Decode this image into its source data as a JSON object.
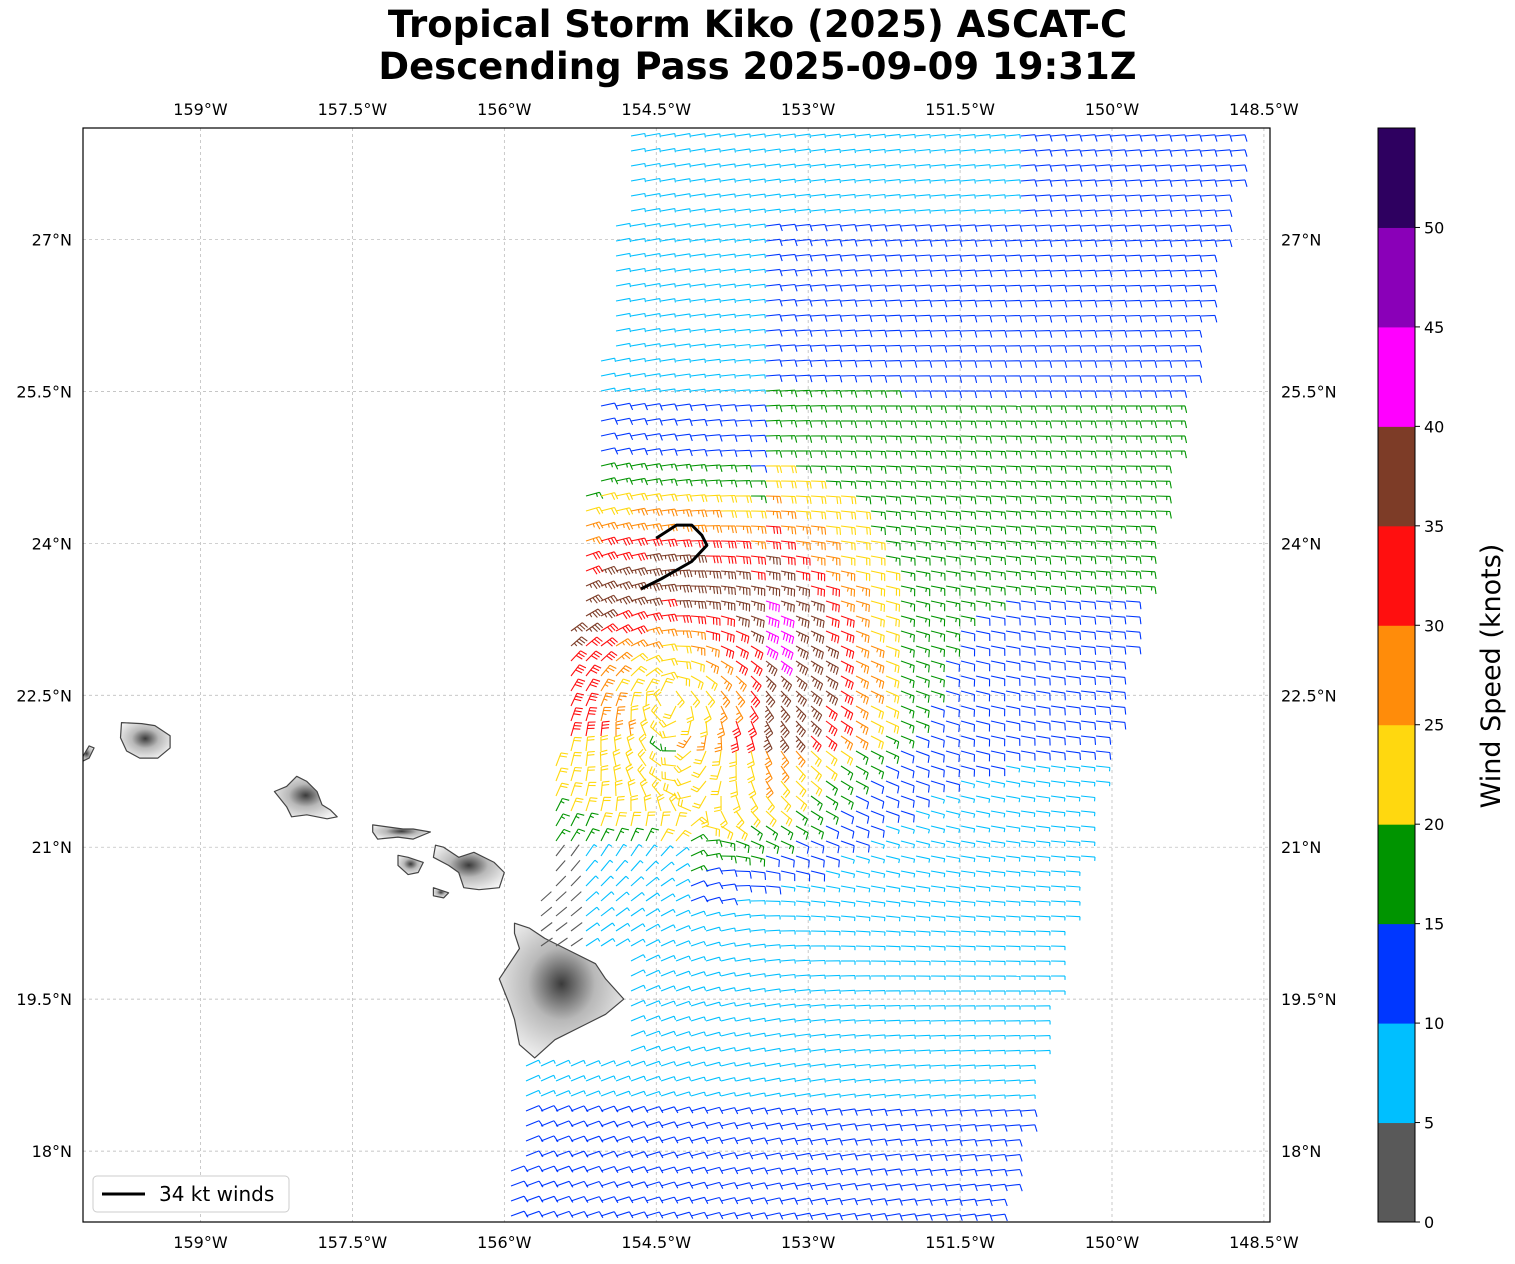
{
  "title_line1": "Tropical Storm Kiko (2025) ASCAT-C",
  "title_line2": "Descending Pass 2025-09-09 19:31Z",
  "lon_ticks": [
    "159°W",
    "157.5°W",
    "156°W",
    "154.5°W",
    "153°W",
    "151.5°W",
    "150°W",
    "148.5°W"
  ],
  "lat_ticks": [
    "27°N",
    "25.5°N",
    "24°N",
    "22.5°N",
    "21°N",
    "19.5°N",
    "18°N"
  ],
  "legend_label": "34 kt winds",
  "colorbar": {
    "label": "Wind Speed (knots)",
    "tick_labels": [
      "0",
      "5",
      "10",
      "15",
      "20",
      "25",
      "30",
      "35",
      "40",
      "45",
      "50"
    ],
    "bins": [
      {
        "min": 0,
        "max": 5,
        "color": "#595959"
      },
      {
        "min": 5,
        "max": 10,
        "color": "#00bfff"
      },
      {
        "min": 10,
        "max": 15,
        "color": "#0037ff"
      },
      {
        "min": 15,
        "max": 20,
        "color": "#009400"
      },
      {
        "min": 20,
        "max": 25,
        "color": "#ffd80f"
      },
      {
        "min": 25,
        "max": 30,
        "color": "#ff8c0a"
      },
      {
        "min": 30,
        "max": 35,
        "color": "#ff0f0f"
      },
      {
        "min": 35,
        "max": 40,
        "color": "#7d3c27"
      },
      {
        "min": 40,
        "max": 45,
        "color": "#ff00ff"
      },
      {
        "min": 45,
        "max": 50,
        "color": "#8a00b8"
      },
      {
        "min": 50,
        "max": 55,
        "color": "#2e0060"
      }
    ]
  },
  "map": {
    "lon_range": [
      -160.16,
      -148.44
    ],
    "lat_range": [
      17.3,
      28.1
    ],
    "storm_center": {
      "lon": -154.4,
      "lat": 22.55
    },
    "swath": {
      "lat_min": 17.3,
      "lat_max": 28.1,
      "west_lon_at_top": -154.8,
      "west_lon_at_bottom": -156.0,
      "east_lon_at_top": -148.7,
      "east_lon_at_bottom": -151.1
    },
    "wind34_contour": [
      [
        -154.5,
        24.05
      ],
      [
        -154.3,
        24.18
      ],
      [
        -154.15,
        24.18
      ],
      [
        -154.05,
        24.08
      ],
      [
        -154.0,
        23.98
      ],
      [
        -154.15,
        23.82
      ],
      [
        -154.45,
        23.65
      ],
      [
        -154.65,
        23.55
      ]
    ],
    "islands": [
      {
        "name": "Kauai",
        "outline": [
          [
            -159.78,
            22.23
          ],
          [
            -159.58,
            22.22
          ],
          [
            -159.45,
            22.2
          ],
          [
            -159.3,
            22.1
          ],
          [
            -159.3,
            21.98
          ],
          [
            -159.42,
            21.88
          ],
          [
            -159.6,
            21.88
          ],
          [
            -159.73,
            21.95
          ],
          [
            -159.79,
            22.08
          ]
        ]
      },
      {
        "name": "Niihau",
        "outline": [
          [
            -160.1,
            22.0
          ],
          [
            -160.05,
            21.98
          ],
          [
            -160.1,
            21.88
          ],
          [
            -160.2,
            21.83
          ]
        ]
      },
      {
        "name": "Oahu",
        "outline": [
          [
            -158.05,
            21.7
          ],
          [
            -157.95,
            21.65
          ],
          [
            -157.85,
            21.55
          ],
          [
            -157.8,
            21.42
          ],
          [
            -157.72,
            21.37
          ],
          [
            -157.65,
            21.3
          ],
          [
            -157.75,
            21.28
          ],
          [
            -157.95,
            21.32
          ],
          [
            -158.1,
            21.3
          ],
          [
            -158.15,
            21.4
          ],
          [
            -158.27,
            21.55
          ],
          [
            -158.15,
            21.6
          ]
        ]
      },
      {
        "name": "Molokai",
        "outline": [
          [
            -157.3,
            21.22
          ],
          [
            -157.0,
            21.18
          ],
          [
            -156.9,
            21.18
          ],
          [
            -156.73,
            21.15
          ],
          [
            -156.9,
            21.08
          ],
          [
            -157.05,
            21.1
          ],
          [
            -157.25,
            21.08
          ],
          [
            -157.3,
            21.15
          ]
        ]
      },
      {
        "name": "Lanai",
        "outline": [
          [
            -157.05,
            20.92
          ],
          [
            -156.95,
            20.9
          ],
          [
            -156.8,
            20.85
          ],
          [
            -156.85,
            20.75
          ],
          [
            -156.95,
            20.73
          ],
          [
            -157.05,
            20.82
          ]
        ]
      },
      {
        "name": "Maui",
        "outline": [
          [
            -156.6,
            21.0
          ],
          [
            -156.45,
            20.9
          ],
          [
            -156.3,
            20.95
          ],
          [
            -156.1,
            20.85
          ],
          [
            -156.0,
            20.75
          ],
          [
            -156.05,
            20.6
          ],
          [
            -156.25,
            20.58
          ],
          [
            -156.4,
            20.6
          ],
          [
            -156.45,
            20.75
          ],
          [
            -156.55,
            20.82
          ],
          [
            -156.7,
            20.9
          ],
          [
            -156.68,
            21.02
          ]
        ]
      },
      {
        "name": "Kahoolawe",
        "outline": [
          [
            -156.7,
            20.6
          ],
          [
            -156.55,
            20.55
          ],
          [
            -156.6,
            20.5
          ],
          [
            -156.7,
            20.52
          ]
        ]
      },
      {
        "name": "Hawaii",
        "outline": [
          [
            -155.9,
            20.25
          ],
          [
            -155.75,
            20.2
          ],
          [
            -155.6,
            20.1
          ],
          [
            -155.4,
            20.0
          ],
          [
            -155.1,
            19.85
          ],
          [
            -155.0,
            19.7
          ],
          [
            -154.82,
            19.5
          ],
          [
            -155.0,
            19.35
          ],
          [
            -155.2,
            19.25
          ],
          [
            -155.5,
            19.1
          ],
          [
            -155.7,
            18.92
          ],
          [
            -155.85,
            19.05
          ],
          [
            -155.9,
            19.3
          ],
          [
            -155.95,
            19.45
          ],
          [
            -156.05,
            19.7
          ],
          [
            -155.95,
            19.85
          ],
          [
            -155.85,
            20.0
          ],
          [
            -155.9,
            20.15
          ]
        ]
      }
    ]
  }
}
